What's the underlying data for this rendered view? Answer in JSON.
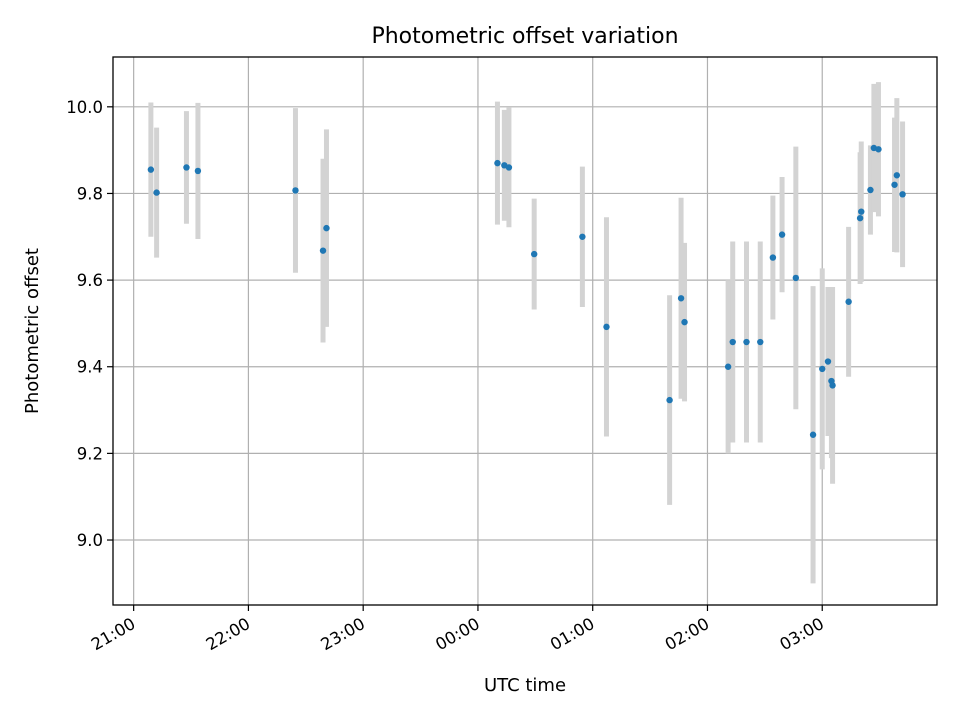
{
  "chart_data": {
    "type": "scatter",
    "title": "Photometric offset variation",
    "xlabel": "UTC time",
    "ylabel": "Photometric offset",
    "x_unit": "hours",
    "xlim": [
      20.82,
      28.0
    ],
    "ylim": [
      8.85,
      10.115
    ],
    "grid": true,
    "x_ticks": [
      {
        "value": 21,
        "label": "21:00"
      },
      {
        "value": 22,
        "label": "22:00"
      },
      {
        "value": 23,
        "label": "23:00"
      },
      {
        "value": 24,
        "label": "00:00"
      },
      {
        "value": 25,
        "label": "01:00"
      },
      {
        "value": 26,
        "label": "02:00"
      },
      {
        "value": 27,
        "label": "03:00"
      }
    ],
    "y_ticks": [
      {
        "value": 9.0,
        "label": "9.0"
      },
      {
        "value": 9.2,
        "label": "9.2"
      },
      {
        "value": 9.4,
        "label": "9.4"
      },
      {
        "value": 9.6,
        "label": "9.6"
      },
      {
        "value": 9.8,
        "label": "9.8"
      },
      {
        "value": 10.0,
        "label": "10.0"
      }
    ],
    "colors": {
      "point": "#1f77b4",
      "errorbar": "#d3d3d3",
      "grid": "#b0b0b0",
      "axis": "#000000"
    },
    "points": [
      {
        "x": 21.15,
        "y": 9.855,
        "err": 0.155
      },
      {
        "x": 21.2,
        "y": 9.802,
        "err": 0.15
      },
      {
        "x": 21.46,
        "y": 9.86,
        "err": 0.13
      },
      {
        "x": 21.56,
        "y": 9.852,
        "err": 0.157
      },
      {
        "x": 22.41,
        "y": 9.807,
        "err": 0.19
      },
      {
        "x": 22.65,
        "y": 9.668,
        "err": 0.212
      },
      {
        "x": 22.68,
        "y": 9.72,
        "err": 0.228
      },
      {
        "x": 24.17,
        "y": 9.87,
        "err": 0.142
      },
      {
        "x": 24.23,
        "y": 9.865,
        "err": 0.128
      },
      {
        "x": 24.27,
        "y": 9.86,
        "err": 0.138
      },
      {
        "x": 24.49,
        "y": 9.66,
        "err": 0.128
      },
      {
        "x": 24.91,
        "y": 9.7,
        "err": 0.162
      },
      {
        "x": 25.12,
        "y": 9.492,
        "err": 0.253
      },
      {
        "x": 25.67,
        "y": 9.323,
        "err": 0.242
      },
      {
        "x": 25.77,
        "y": 9.558,
        "err": 0.232
      },
      {
        "x": 25.8,
        "y": 9.503,
        "err": 0.183
      },
      {
        "x": 26.18,
        "y": 9.4,
        "err": 0.2
      },
      {
        "x": 26.22,
        "y": 9.457,
        "err": 0.232
      },
      {
        "x": 26.34,
        "y": 9.457,
        "err": 0.232
      },
      {
        "x": 26.46,
        "y": 9.457,
        "err": 0.232
      },
      {
        "x": 26.57,
        "y": 9.652,
        "err": 0.143
      },
      {
        "x": 26.65,
        "y": 9.705,
        "err": 0.133
      },
      {
        "x": 26.77,
        "y": 9.605,
        "err": 0.303
      },
      {
        "x": 26.92,
        "y": 9.243,
        "err": 0.343
      },
      {
        "x": 27.0,
        "y": 9.395,
        "err": 0.232
      },
      {
        "x": 27.05,
        "y": 9.412,
        "err": 0.172
      },
      {
        "x": 27.08,
        "y": 9.367,
        "err": 0.178
      },
      {
        "x": 27.09,
        "y": 9.357,
        "err": 0.227
      },
      {
        "x": 27.23,
        "y": 9.55,
        "err": 0.173
      },
      {
        "x": 27.33,
        "y": 9.743,
        "err": 0.152
      },
      {
        "x": 27.34,
        "y": 9.758,
        "err": 0.162
      },
      {
        "x": 27.42,
        "y": 9.808,
        "err": 0.103
      },
      {
        "x": 27.45,
        "y": 9.905,
        "err": 0.148
      },
      {
        "x": 27.49,
        "y": 9.902,
        "err": 0.155
      },
      {
        "x": 27.63,
        "y": 9.82,
        "err": 0.155
      },
      {
        "x": 27.65,
        "y": 9.842,
        "err": 0.178
      },
      {
        "x": 27.7,
        "y": 9.798,
        "err": 0.168
      }
    ]
  }
}
